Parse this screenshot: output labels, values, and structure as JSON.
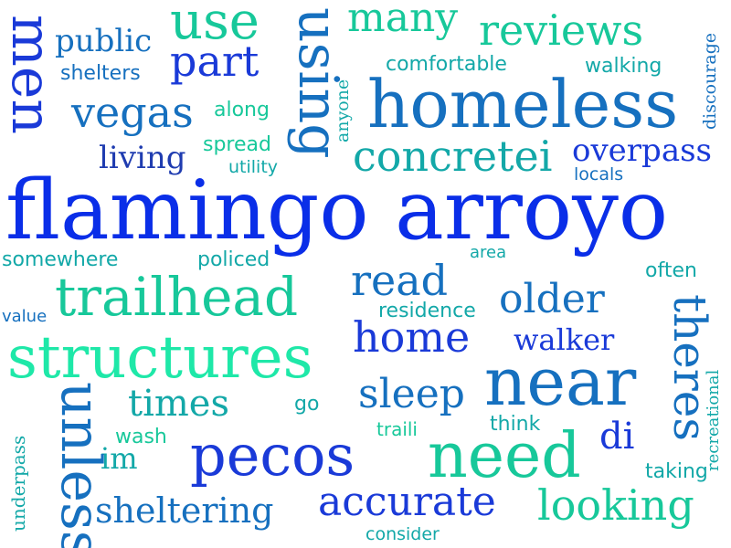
{
  "words": {
    "flamingo_arroyo": "flamingo arroyo",
    "homeless": "homeless",
    "structures": "structures",
    "trailhead": "trailhead",
    "near": "near",
    "pecos": "pecos",
    "need": "need",
    "accurate": "accurate",
    "looking": "looking",
    "using": "using",
    "men": "men",
    "unless": "unless",
    "theres": "theres",
    "use": "use",
    "many": "many",
    "reviews": "reviews",
    "concretei": "concretei",
    "home": "home",
    "read": "read",
    "older": "older",
    "sleep": "sleep",
    "times": "times",
    "sheltering": "sheltering",
    "vegas": "vegas",
    "part": "part",
    "public": "public",
    "overpass": "overpass",
    "living": "living",
    "walker": "walker",
    "comfortable": "comfortable",
    "di": "di",
    "im": "im",
    "shelters": "shelters",
    "walking": "walking",
    "spread": "spread",
    "along": "along",
    "utility": "utility",
    "somewhere": "somewhere",
    "policed": "policed",
    "residence": "residence",
    "area": "area",
    "often": "often",
    "value": "value",
    "locals": "locals",
    "wash": "wash",
    "go": "go",
    "traili": "traili",
    "think": "think",
    "taking": "taking",
    "consider": "consider",
    "discourage": "discourage",
    "anyone": "anyone",
    "recreational": "recreational",
    "underpass": "underpass"
  },
  "palette": {
    "royal_blue": "#1a3ad8",
    "bright_blue": "#0a2ee8",
    "ocean_blue": "#1670bf",
    "teal": "#13a8a8",
    "sea_green": "#17c89a",
    "mint": "#1ee8a8",
    "navy": "#1f3cb0"
  }
}
